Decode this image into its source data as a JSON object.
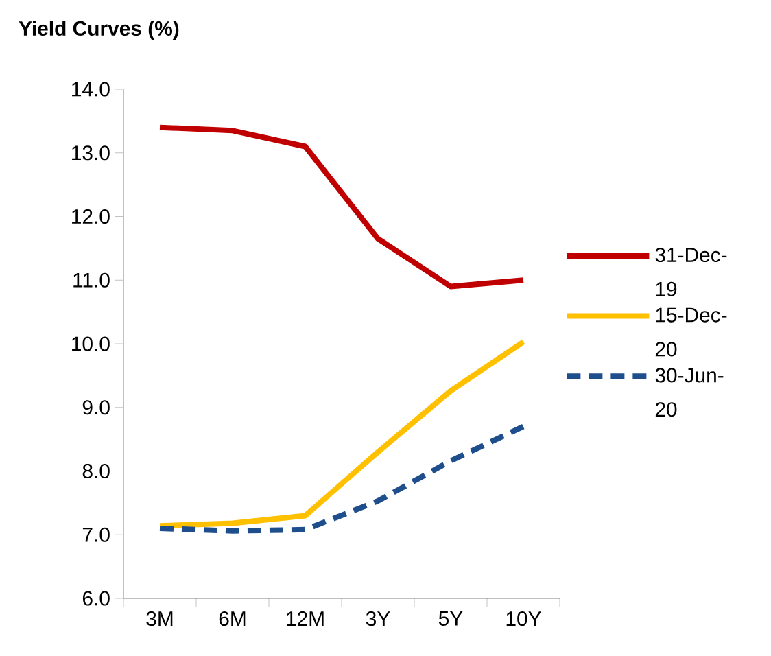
{
  "chart_data": {
    "type": "line",
    "title": "Yield Curves (%)",
    "categories": [
      "3M",
      "6M",
      "12M",
      "3Y",
      "5Y",
      "10Y"
    ],
    "series": [
      {
        "name": "31-Dec-19",
        "color": "#c00000",
        "line_style": "solid",
        "values": [
          13.4,
          13.35,
          13.1,
          11.65,
          10.9,
          11.0
        ]
      },
      {
        "name": "15-Dec-20",
        "color": "#ffc000",
        "line_style": "solid",
        "values": [
          7.14,
          7.18,
          7.3,
          8.3,
          9.26,
          10.03
        ]
      },
      {
        "name": "30-Jun-20",
        "color": "#1f4e8c",
        "line_style": "dashed",
        "values": [
          7.1,
          7.06,
          7.08,
          7.53,
          8.16,
          8.7
        ]
      }
    ],
    "ylim": [
      6.0,
      14.0
    ],
    "yticks": [
      {
        "value": 6,
        "label": "6.0"
      },
      {
        "value": 7,
        "label": "7.0"
      },
      {
        "value": 8,
        "label": "8.0"
      },
      {
        "value": 9,
        "label": "9.0"
      },
      {
        "value": 10,
        "label": "10.0"
      },
      {
        "value": 11,
        "label": "11.0"
      },
      {
        "value": 12,
        "label": "12.0"
      },
      {
        "value": 13,
        "label": "13.0"
      },
      {
        "value": 14,
        "label": "14.0"
      }
    ],
    "grid": false,
    "legend": "right",
    "marker": "none"
  }
}
